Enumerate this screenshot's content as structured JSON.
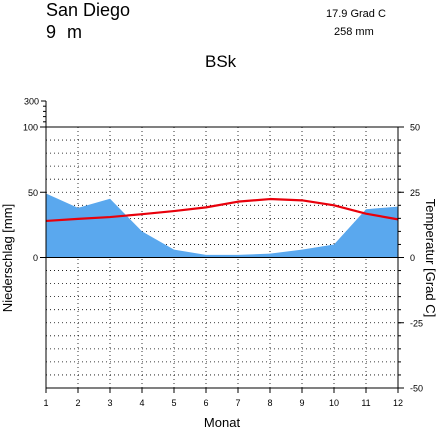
{
  "header": {
    "station": "San Diego",
    "elevation": "9  m",
    "mean_temperature": "17.9 Grad C",
    "annual_precipitation": "258 mm",
    "climate_class": "BSk"
  },
  "chart_data": {
    "type": "climate-diagram",
    "xlabel": "Monat",
    "ylabel_left": "Niederschlag [mm]",
    "ylabel_right": "Temperatur [Grad C]",
    "x": [
      1,
      2,
      3,
      4,
      5,
      6,
      7,
      8,
      9,
      10,
      11,
      12
    ],
    "left_axis": {
      "range": [
        -100,
        100
      ],
      "ticks": [
        0,
        50,
        100
      ],
      "top_label": "300"
    },
    "right_axis": {
      "range": [
        -50,
        50
      ],
      "ticks": [
        -50,
        -25,
        0,
        25,
        50
      ]
    },
    "grid": true,
    "series": [
      {
        "kind": "area",
        "axis": "left",
        "color": "#5aa8ee",
        "values": [
          49,
          38,
          45,
          20,
          6,
          2,
          2,
          3,
          6,
          10,
          37,
          39
        ]
      },
      {
        "kind": "line",
        "axis": "right",
        "color": "#e8000b",
        "values": [
          14.0,
          14.8,
          15.5,
          16.6,
          17.8,
          19.2,
          21.4,
          22.4,
          21.9,
          20.0,
          16.8,
          14.6
        ]
      }
    ]
  }
}
